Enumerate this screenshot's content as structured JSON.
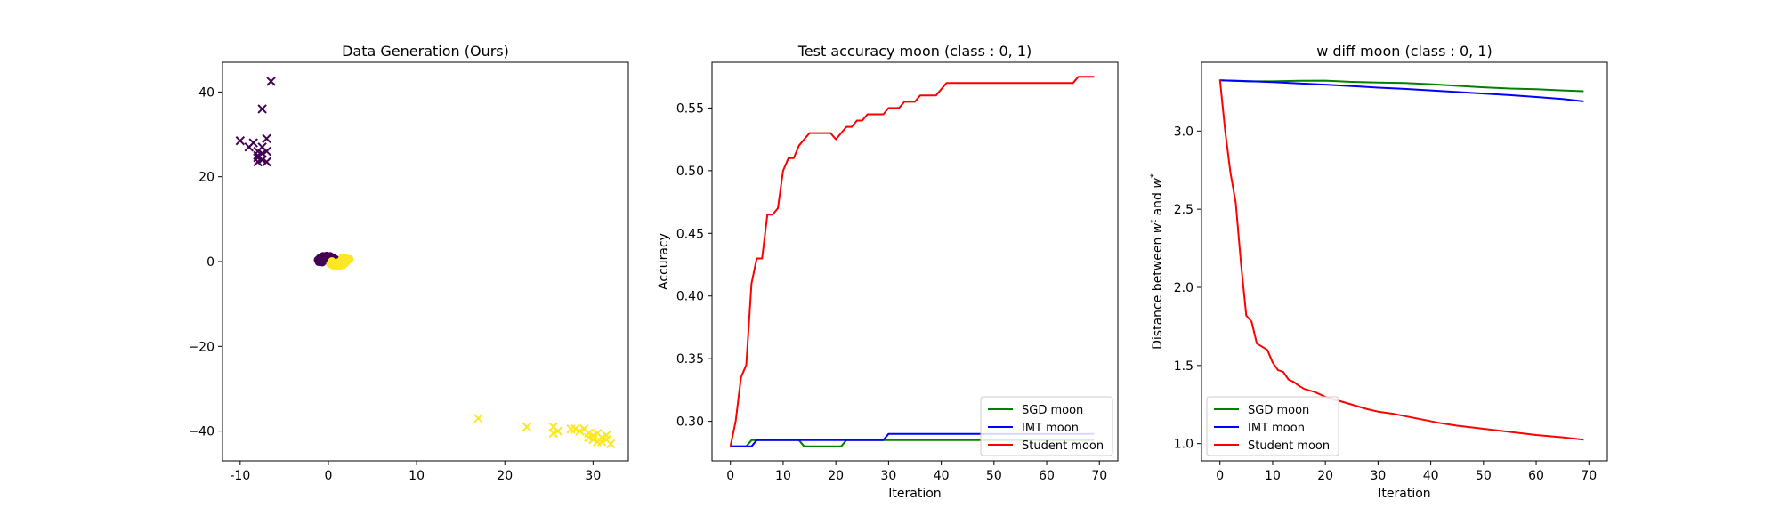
{
  "chart_data": [
    {
      "type": "scatter",
      "title": "Data Generation (Ours)",
      "xlabel": "",
      "ylabel": "",
      "xlim": [
        -12,
        34
      ],
      "ylim": [
        -47,
        47
      ],
      "xticks": [
        -10,
        0,
        10,
        20,
        30
      ],
      "yticks": [
        -40,
        -20,
        0,
        20,
        40
      ],
      "grid": false,
      "colors": {
        "class0": "#440154",
        "class1": "#fde725"
      },
      "series": [
        {
          "marker": "cross",
          "class": 0,
          "points": [
            [
              -6.5,
              42.5
            ],
            [
              -7.5,
              36
            ],
            [
              -10,
              28.5
            ],
            [
              -9,
              27
            ],
            [
              -8.5,
              28
            ],
            [
              -8,
              26
            ],
            [
              -7,
              29
            ],
            [
              -7.5,
              27
            ],
            [
              -7,
              26
            ],
            [
              -8,
              25
            ],
            [
              -7.5,
              24
            ],
            [
              -8,
              23.5
            ],
            [
              -7,
              23.5
            ],
            [
              -7.5,
              25.5
            ],
            [
              -8,
              24.5
            ]
          ]
        },
        {
          "marker": "cross",
          "class": 1,
          "points": [
            [
              17,
              -37
            ],
            [
              22.5,
              -39
            ],
            [
              25.5,
              -39
            ],
            [
              25.5,
              -40.5
            ],
            [
              26,
              -40
            ],
            [
              27.5,
              -39.5
            ],
            [
              28,
              -39.5
            ],
            [
              28.5,
              -40
            ],
            [
              29,
              -39.5
            ],
            [
              29.5,
              -40.5
            ],
            [
              30,
              -41
            ],
            [
              30.5,
              -40.5
            ],
            [
              31,
              -41.5
            ],
            [
              31.5,
              -42
            ],
            [
              30,
              -42
            ],
            [
              31,
              -42.5
            ],
            [
              32,
              -43
            ],
            [
              29.5,
              -41.5
            ],
            [
              30.5,
              -42.5
            ],
            [
              31.5,
              -41
            ]
          ]
        },
        {
          "marker": "dot",
          "class": 0,
          "points": [
            [
              -1.2,
              0.4
            ],
            [
              -0.9,
              1.0
            ],
            [
              -0.6,
              1.3
            ],
            [
              -0.2,
              1.4
            ],
            [
              0.2,
              1.3
            ],
            [
              0.5,
              1.0
            ],
            [
              0.8,
              0.6
            ],
            [
              -1.1,
              -0.1
            ],
            [
              -0.7,
              -0.2
            ],
            [
              -0.3,
              0.6
            ],
            [
              0.1,
              0.5
            ],
            [
              -0.8,
              0.5
            ],
            [
              0.4,
              0.3
            ],
            [
              -0.5,
              1.1
            ],
            [
              0.0,
              1.0
            ],
            [
              -1.0,
              0.8
            ],
            [
              0.6,
              0.7
            ],
            [
              -0.4,
              0.2
            ]
          ]
        },
        {
          "marker": "dot",
          "class": 1,
          "points": [
            [
              0.2,
              -0.6
            ],
            [
              0.5,
              -0.9
            ],
            [
              0.9,
              -1.2
            ],
            [
              1.3,
              -1.1
            ],
            [
              1.7,
              -0.8
            ],
            [
              2.0,
              -0.3
            ],
            [
              2.2,
              0.3
            ],
            [
              2.0,
              0.8
            ],
            [
              1.6,
              1.0
            ],
            [
              1.0,
              -0.2
            ],
            [
              1.4,
              0.2
            ],
            [
              0.7,
              -0.4
            ],
            [
              1.8,
              0.5
            ],
            [
              2.4,
              0.6
            ],
            [
              0.4,
              0.1
            ],
            [
              1.1,
              -0.7
            ]
          ]
        }
      ]
    },
    {
      "type": "line",
      "title": "Test accuracy moon (class : 0, 1)",
      "xlabel": "Iteration",
      "ylabel": "Accuracy",
      "xlim": [
        -3.5,
        73.5
      ],
      "ylim": [
        0.2685,
        0.5865
      ],
      "xticks": [
        0,
        10,
        20,
        30,
        40,
        50,
        60,
        70
      ],
      "yticks": [
        0.3,
        0.35,
        0.4,
        0.45,
        0.5,
        0.55
      ],
      "ytick_labels": [
        "0.30",
        "0.35",
        "0.40",
        "0.45",
        "0.50",
        "0.55"
      ],
      "grid": false,
      "legend": {
        "placement": "lower-right"
      },
      "series": [
        {
          "name": "SGD moon",
          "color": "#008000",
          "points": [
            [
              0,
              0.28
            ],
            [
              1,
              0.28
            ],
            [
              2,
              0.28
            ],
            [
              3,
              0.28
            ],
            [
              4,
              0.285
            ],
            [
              12,
              0.285
            ],
            [
              13,
              0.285
            ],
            [
              14,
              0.28
            ],
            [
              20,
              0.28
            ],
            [
              21,
              0.28
            ],
            [
              22,
              0.285
            ],
            [
              68,
              0.285
            ],
            [
              69,
              0.285
            ]
          ]
        },
        {
          "name": "IMT moon",
          "color": "#0000ff",
          "points": [
            [
              0,
              0.28
            ],
            [
              3,
              0.28
            ],
            [
              4,
              0.28
            ],
            [
              5,
              0.285
            ],
            [
              29,
              0.285
            ],
            [
              30,
              0.29
            ],
            [
              69,
              0.29
            ]
          ]
        },
        {
          "name": "Student moon",
          "color": "#ff0000",
          "points": [
            [
              0,
              0.28
            ],
            [
              1,
              0.3
            ],
            [
              2,
              0.335
            ],
            [
              3,
              0.345
            ],
            [
              4,
              0.41
            ],
            [
              5,
              0.43
            ],
            [
              6,
              0.43
            ],
            [
              7,
              0.465
            ],
            [
              8,
              0.465
            ],
            [
              9,
              0.47
            ],
            [
              10,
              0.5
            ],
            [
              11,
              0.51
            ],
            [
              12,
              0.51
            ],
            [
              13,
              0.52
            ],
            [
              14,
              0.525
            ],
            [
              15,
              0.53
            ],
            [
              19,
              0.53
            ],
            [
              20,
              0.525
            ],
            [
              21,
              0.53
            ],
            [
              22,
              0.535
            ],
            [
              23,
              0.535
            ],
            [
              24,
              0.54
            ],
            [
              25,
              0.54
            ],
            [
              26,
              0.545
            ],
            [
              29,
              0.545
            ],
            [
              30,
              0.55
            ],
            [
              32,
              0.55
            ],
            [
              33,
              0.555
            ],
            [
              35,
              0.555
            ],
            [
              36,
              0.56
            ],
            [
              39,
              0.56
            ],
            [
              41,
              0.57
            ],
            [
              65,
              0.57
            ],
            [
              66,
              0.575
            ],
            [
              69,
              0.575
            ]
          ]
        }
      ]
    },
    {
      "type": "line",
      "title": "w diff moon (class : 0, 1)",
      "xlabel": "Iteration",
      "ylabel_parts": [
        "Distance between ",
        "w",
        "t",
        " and ",
        "w",
        "*"
      ],
      "xlim": [
        -3.5,
        73.5
      ],
      "ylim": [
        0.89,
        3.44
      ],
      "xticks": [
        0,
        10,
        20,
        30,
        40,
        50,
        60,
        70
      ],
      "yticks": [
        1.0,
        1.5,
        2.0,
        2.5,
        3.0
      ],
      "ytick_labels": [
        "1.0",
        "1.5",
        "2.0",
        "2.5",
        "3.0"
      ],
      "grid": false,
      "legend": {
        "placement": "lower-left"
      },
      "series": [
        {
          "name": "SGD moon",
          "color": "#008000",
          "points": [
            [
              0,
              3.325
            ],
            [
              5,
              3.318
            ],
            [
              10,
              3.318
            ],
            [
              15,
              3.322
            ],
            [
              20,
              3.323
            ],
            [
              25,
              3.315
            ],
            [
              30,
              3.31
            ],
            [
              35,
              3.308
            ],
            [
              40,
              3.3
            ],
            [
              45,
              3.29
            ],
            [
              50,
              3.28
            ],
            [
              55,
              3.272
            ],
            [
              60,
              3.268
            ],
            [
              65,
              3.26
            ],
            [
              69,
              3.255
            ]
          ]
        },
        {
          "name": "IMT moon",
          "color": "#0000ff",
          "points": [
            [
              0,
              3.325
            ],
            [
              5,
              3.32
            ],
            [
              10,
              3.313
            ],
            [
              15,
              3.305
            ],
            [
              20,
              3.297
            ],
            [
              25,
              3.288
            ],
            [
              30,
              3.278
            ],
            [
              35,
              3.27
            ],
            [
              40,
              3.26
            ],
            [
              45,
              3.25
            ],
            [
              50,
              3.24
            ],
            [
              55,
              3.23
            ],
            [
              60,
              3.218
            ],
            [
              65,
              3.205
            ],
            [
              69,
              3.19
            ]
          ]
        },
        {
          "name": "Student moon",
          "color": "#ff0000",
          "points": [
            [
              0,
              3.33
            ],
            [
              1,
              3.0
            ],
            [
              2,
              2.73
            ],
            [
              3,
              2.54
            ],
            [
              4,
              2.15
            ],
            [
              5,
              1.82
            ],
            [
              6,
              1.78
            ],
            [
              7,
              1.64
            ],
            [
              8,
              1.62
            ],
            [
              9,
              1.6
            ],
            [
              10,
              1.52
            ],
            [
              11,
              1.47
            ],
            [
              12,
              1.46
            ],
            [
              13,
              1.41
            ],
            [
              14,
              1.395
            ],
            [
              15,
              1.37
            ],
            [
              16,
              1.35
            ],
            [
              18,
              1.33
            ],
            [
              20,
              1.3
            ],
            [
              22,
              1.28
            ],
            [
              24,
              1.26
            ],
            [
              26,
              1.24
            ],
            [
              28,
              1.22
            ],
            [
              30,
              1.205
            ],
            [
              33,
              1.19
            ],
            [
              36,
              1.17
            ],
            [
              39,
              1.15
            ],
            [
              42,
              1.13
            ],
            [
              45,
              1.115
            ],
            [
              50,
              1.095
            ],
            [
              55,
              1.075
            ],
            [
              60,
              1.055
            ],
            [
              65,
              1.04
            ],
            [
              69,
              1.025
            ]
          ]
        }
      ]
    }
  ]
}
